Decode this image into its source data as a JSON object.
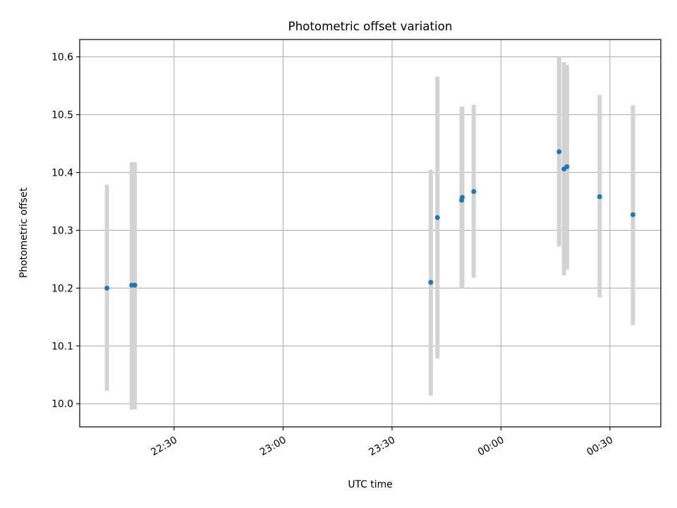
{
  "chart_data": {
    "type": "scatter",
    "title": "Photometric offset variation",
    "xlabel": "UTC time",
    "ylabel": "Photometric offset",
    "x_axis": {
      "type": "time",
      "range": [
        "22:04",
        "00:44"
      ],
      "tick_labels": [
        "22:30",
        "23:00",
        "23:30",
        "00:00",
        "00:30"
      ]
    },
    "y_axis": {
      "range": [
        9.96,
        10.63
      ],
      "tick_labels": [
        "10.0",
        "10.1",
        "10.2",
        "10.3",
        "10.4",
        "10.5",
        "10.6"
      ]
    },
    "grid": true,
    "series": [
      {
        "points": [
          {
            "time": "22:11:30",
            "y": 10.2,
            "ylow": 10.022,
            "yhigh": 10.379
          },
          {
            "time": "22:18:20",
            "y": 10.205,
            "ylow": 9.99,
            "yhigh": 10.418
          },
          {
            "time": "22:19:10",
            "y": 10.205,
            "ylow": 9.99,
            "yhigh": 10.418
          },
          {
            "time": "23:40:40",
            "y": 10.21,
            "ylow": 10.014,
            "yhigh": 10.405
          },
          {
            "time": "23:42:30",
            "y": 10.322,
            "ylow": 10.078,
            "yhigh": 10.566
          },
          {
            "time": "23:49:10",
            "y": 10.352,
            "ylow": 10.2,
            "yhigh": 10.514
          },
          {
            "time": "23:49:20",
            "y": 10.357,
            "ylow": 10.2,
            "yhigh": 10.514
          },
          {
            "time": "23:52:30",
            "y": 10.367,
            "ylow": 10.218,
            "yhigh": 10.517
          },
          {
            "time": "00:16:00",
            "y": 10.436,
            "ylow": 10.272,
            "yhigh": 10.6
          },
          {
            "time": "00:17:20",
            "y": 10.406,
            "ylow": 10.222,
            "yhigh": 10.591
          },
          {
            "time": "00:18:10",
            "y": 10.41,
            "ylow": 10.232,
            "yhigh": 10.586
          },
          {
            "time": "00:27:10",
            "y": 10.358,
            "ylow": 10.184,
            "yhigh": 10.534
          },
          {
            "time": "00:36:20",
            "y": 10.327,
            "ylow": 10.136,
            "yhigh": 10.516
          }
        ]
      }
    ],
    "colors": {
      "point": "#1f77b4",
      "errorbar": "#d3d3d3",
      "grid": "#b0b0b0",
      "axes": "#000000"
    }
  }
}
